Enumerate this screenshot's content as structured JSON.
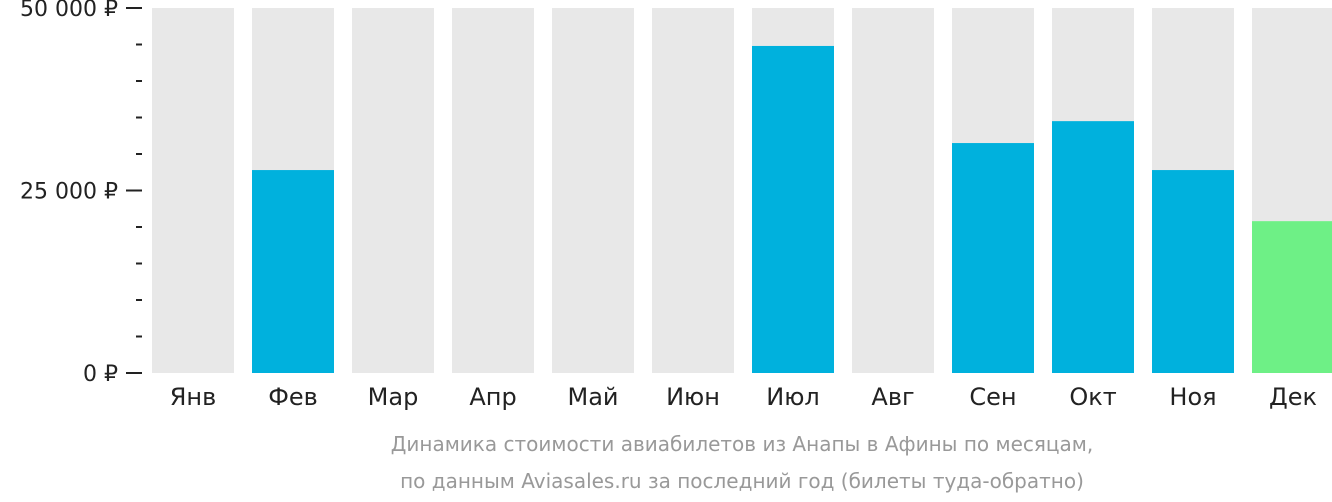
{
  "chart_data": {
    "type": "bar",
    "categories": [
      "Янв",
      "Фев",
      "Мар",
      "Апр",
      "Май",
      "Июн",
      "Июл",
      "Авг",
      "Сен",
      "Окт",
      "Ноя",
      "Дек"
    ],
    "values": [
      null,
      27800,
      null,
      null,
      null,
      null,
      44800,
      null,
      31500,
      34500,
      27800,
      20800
    ],
    "ylim": [
      0,
      50000
    ],
    "y_major_ticks": [
      {
        "value": 0,
        "label": "0 ₽"
      },
      {
        "value": 25000,
        "label": "25 000 ₽"
      },
      {
        "value": 50000,
        "label": "50 000 ₽"
      }
    ],
    "y_minor_tick_step": 5000,
    "caption_lines": [
      "Динамика стоимости авиабилетов из Анапы в Афины по месяцам,",
      "по данным Aviasales.ru за последний год (билеты туда-обратно)"
    ],
    "colors": {
      "bar": "#00b1dd",
      "bar_highlight": "#6ef086",
      "column_background": "#e8e8e8",
      "axis_ticks": "#222222",
      "caption": "#999999"
    },
    "highlight_categories": [
      "Дек"
    ],
    "grid": false,
    "legend": "none"
  }
}
